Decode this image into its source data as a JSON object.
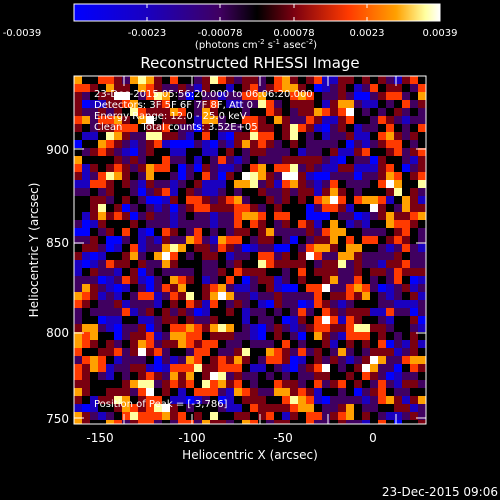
{
  "colorbar": {
    "tick_labels": [
      "-0.0039",
      "-0.0023",
      "-0.00078",
      "0.00078",
      "0.0023",
      "0.0039"
    ],
    "units_main": "(photons cm",
    "units_exp1": "-2",
    "units_mid1": " s",
    "units_exp2": "-1",
    "units_mid2": " asec",
    "units_exp3": "-2",
    "units_end": ")",
    "colors": [
      "#0000ff",
      "#1a00c0",
      "#400060",
      "#000000",
      "#7a0010",
      "#ff3a00",
      "#ffa000",
      "#ffffa0",
      "#ffffff"
    ]
  },
  "title": "Reconstructed RHESSI Image",
  "info": {
    "line1": "23-Dec-2015 05:56:20.000 to 06:06:20.000",
    "line2": "Detectors: 3F 5F 6F 7F 8F, Att 0",
    "line3": "Energy Range: 12.0 - 25.0 keV",
    "line4": "Clean      Total counts: 3.52E+05",
    "peak": "Position of Peak = [-3,786]"
  },
  "axes": {
    "xlabel": "Heliocentric X (arcsec)",
    "ylabel": "Heliocentric Y (arcsec)",
    "xticks": [
      "-150",
      "-100",
      "-50",
      "0"
    ],
    "yticks": [
      "750",
      "800",
      "850",
      "900"
    ]
  },
  "timestamp": "23-Dec-2015 09:06"
}
